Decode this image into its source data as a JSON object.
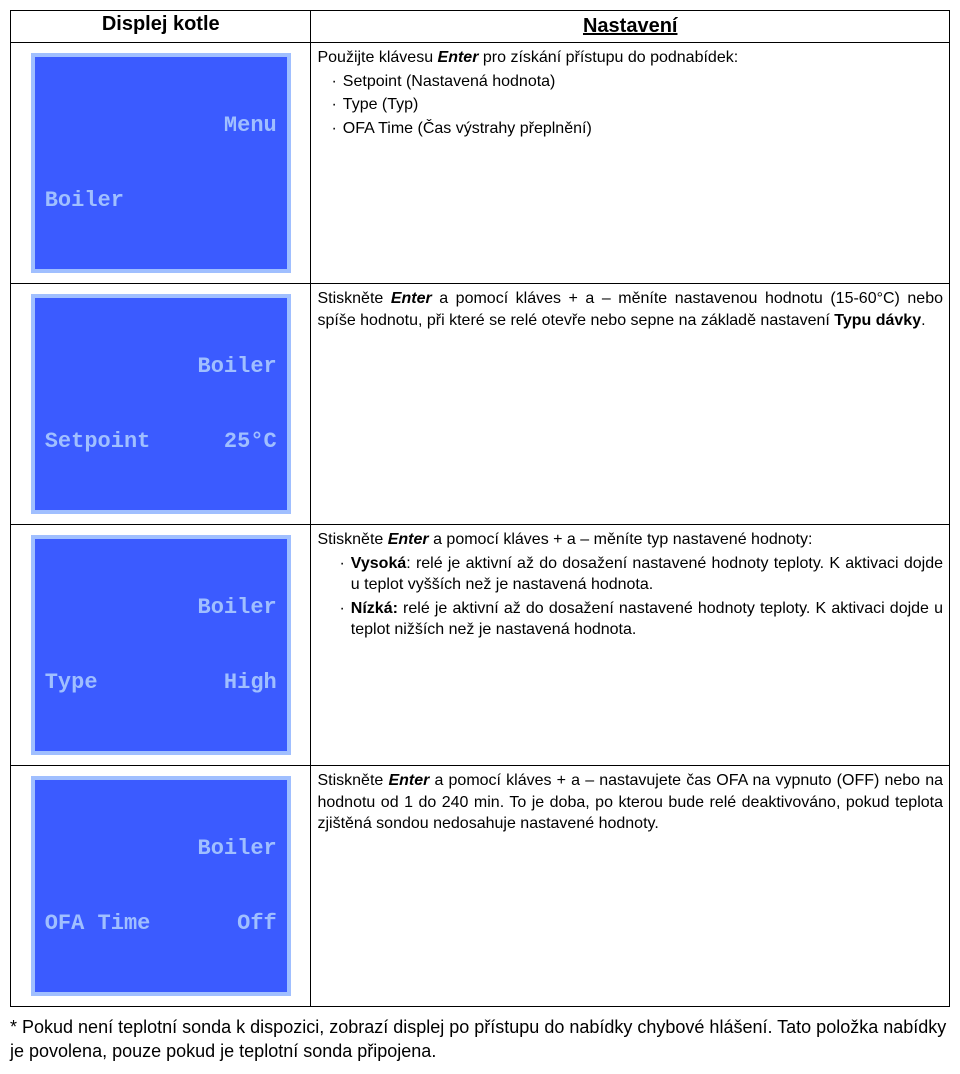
{
  "header": {
    "left": "Displej kotle",
    "right": "Nastavení"
  },
  "displays": {
    "d1": {
      "line1": "Menu",
      "line2a": "Boiler",
      "line2b": ""
    },
    "d2": {
      "line1": "Boiler",
      "line2a": "Setpoint",
      "line2b": "25°C"
    },
    "d3": {
      "line1": "Boiler",
      "line2a": "Type",
      "line2b": "High"
    },
    "d4": {
      "line1": "Boiler",
      "line2a": "OFA Time",
      "line2b": "Off"
    }
  },
  "row1": {
    "lead_a": "Použijte klávesu ",
    "lead_enter": "Enter",
    "lead_b": " pro získání přístupu do podnabídek:",
    "b1": "Setpoint (Nastavená hodnota)",
    "b2": "Type (Typ)",
    "b3": "OFA Time (Čas výstrahy přeplnění)"
  },
  "row2": {
    "a": "Stiskněte ",
    "enter": "Enter",
    "b": " a pomocí kláves + a – měníte nastavenou hodnotu (15-60°C) nebo spíše hodnotu, při které se relé otevře nebo sepne na základě nastavení ",
    "bold": "Typu dávky",
    "c": "."
  },
  "row3": {
    "a": "Stiskněte ",
    "enter": "Enter",
    "b": " a pomocí kláves + a –  měníte typ nastavené hodnoty:",
    "b1_bold": "Vysoká",
    "b1_rest": ": relé je aktivní až do dosažení nastavené hodnoty teploty. K aktivaci dojde u teplot vyšších než je nastavená hodnota.",
    "b2_bold": "Nízká:",
    "b2_rest": " relé je aktivní až do dosažení nastavené hodnoty teploty. K aktivaci dojde u teplot nižších než je nastavená hodnota."
  },
  "row4": {
    "a": "Stiskněte ",
    "enter": "Enter",
    "b": " a pomocí kláves + a – nastavujete čas OFA na vypnuto (OFF) nebo na hodnotu od 1 do 240 min. To je doba, po kterou bude relé deaktivováno, pokud teplota zjištěná sondou nedosahuje nastavené hodnoty."
  },
  "footnote": "* Pokud není teplotní sonda k dispozici, zobrazí displej po přístupu do nabídky chybové hlášení. Tato položka nabídky je povolena, pouze pokud je teplotní sonda připojena.",
  "colors": {
    "display_bg": "#3b5bff",
    "display_border": "#a0bfff",
    "display_text": "#a0bfff"
  }
}
